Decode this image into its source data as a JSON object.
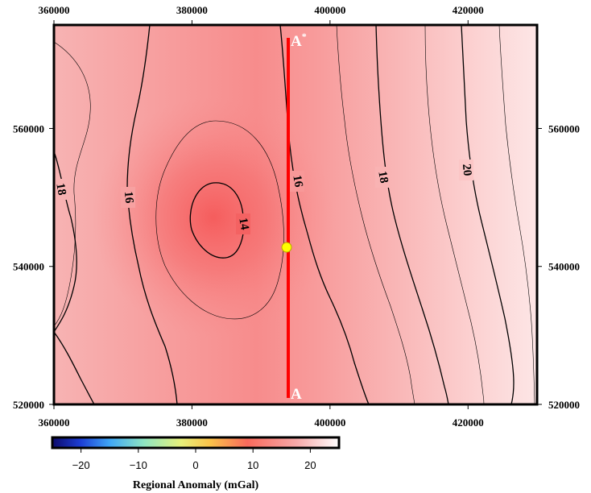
{
  "map": {
    "x_axis": {
      "ticks": [
        "360000",
        "380000",
        "400000",
        "420000"
      ],
      "tick_values": [
        360000,
        380000,
        400000,
        420000
      ],
      "range": [
        360000,
        430000
      ]
    },
    "y_axis": {
      "ticks": [
        "520000",
        "540000",
        "560000"
      ],
      "tick_values": [
        520000,
        540000,
        560000
      ],
      "range": [
        520000,
        575000
      ]
    },
    "contour_labels": [
      "18",
      "16",
      "14",
      "16",
      "18",
      "20"
    ],
    "profile": {
      "start_label": "A",
      "end_label": "A",
      "end_superscript": "*",
      "line_color": "#ff0000",
      "marker_color": "#ffff00"
    }
  },
  "colorbar": {
    "title": "Regional Anomaly (mGal)",
    "ticks": [
      "−20",
      "−10",
      "0",
      "10",
      "20"
    ],
    "tick_values": [
      -20,
      -10,
      0,
      10,
      20
    ],
    "range": [
      -25,
      25
    ],
    "colors": [
      "#0c0a6b",
      "#1d3fd6",
      "#3fa6f5",
      "#8fe6c2",
      "#e8f07a",
      "#fbc34a",
      "#f86a5c",
      "#f7a8a8",
      "#fffefe"
    ]
  }
}
